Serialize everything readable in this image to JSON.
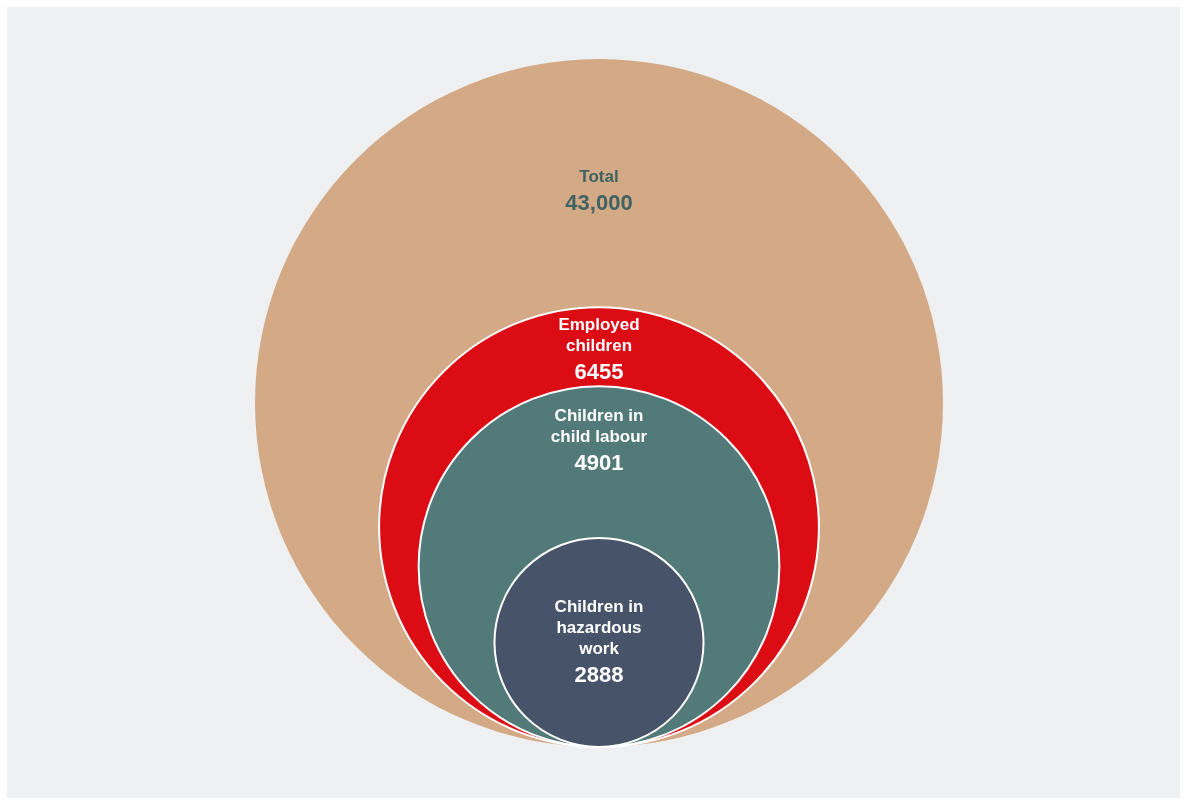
{
  "chart_data": {
    "type": "other",
    "categories": [
      "Total",
      "Employed children",
      "Children in child labour",
      "Children in hazardous work"
    ],
    "values": [
      43000,
      6455,
      4901,
      2888
    ],
    "value_labels": [
      "43,000",
      "6455",
      "4901",
      "2888"
    ],
    "colors": [
      "#d4aa86",
      "#dc0c15",
      "#527a78",
      "#475368"
    ]
  }
}
